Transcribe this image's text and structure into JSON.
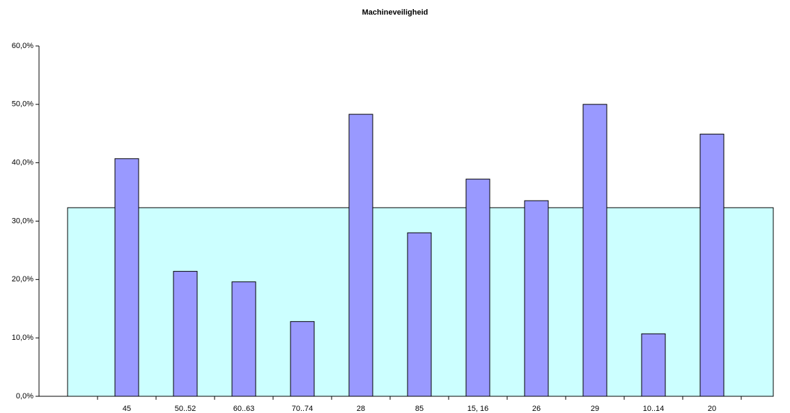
{
  "chart_data": {
    "type": "bar",
    "title": "Machineveiligheid",
    "categories": [
      "45",
      "50..52",
      "60..63",
      "70..74",
      "28",
      "85",
      "15, 16",
      "26",
      "29",
      "10..14",
      "20"
    ],
    "values": [
      40.7,
      21.4,
      19.6,
      12.8,
      48.3,
      28.0,
      37.2,
      33.5,
      50.0,
      10.7,
      44.9
    ],
    "color": "#9999ff",
    "area": {
      "value": 32.3,
      "color": "#ccffff"
    },
    "ylim": [
      0,
      60
    ],
    "yticks": [
      {
        "value": 0,
        "label": "0,0%"
      },
      {
        "value": 10,
        "label": "10,0%"
      },
      {
        "value": 20,
        "label": "20,0%"
      },
      {
        "value": 30,
        "label": "30,0%"
      },
      {
        "value": 40,
        "label": "40,0%"
      },
      {
        "value": 50,
        "label": "50,0%"
      },
      {
        "value": 60,
        "label": "60,0%"
      }
    ]
  }
}
